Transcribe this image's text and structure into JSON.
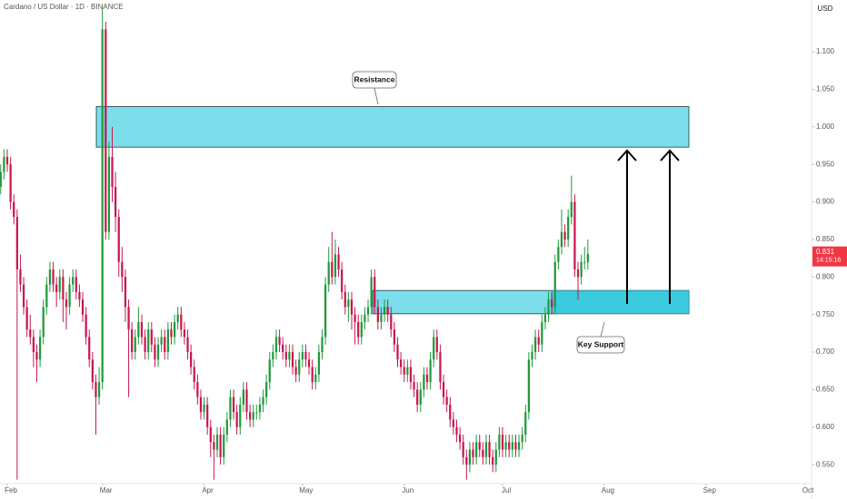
{
  "chart_data": {
    "type": "candlestick",
    "title": "Cardano / US Dollar · 1D · BINANCE",
    "currency": "USD",
    "countdown": "14:15:16",
    "up_color": "#1f9a3a",
    "down_color": "#c8174f",
    "zone_color": "#4fd3e3",
    "zones": [
      {
        "label": "Resistance",
        "low": 0.973,
        "high": 1.027
      },
      {
        "label": "Key Support",
        "low": 0.751,
        "high": 0.782
      }
    ],
    "xlim": [
      -0.22,
      247.2
    ],
    "xticks": [
      {
        "value": 2,
        "label": "Feb"
      },
      {
        "value": 31,
        "label": "Mar"
      },
      {
        "value": 62,
        "label": "Apr"
      },
      {
        "value": 92,
        "label": "May"
      },
      {
        "value": 123,
        "label": "Jun"
      },
      {
        "value": 153,
        "label": "Jul"
      },
      {
        "value": 184,
        "label": "Aug"
      },
      {
        "value": 215,
        "label": "Sep"
      },
      {
        "value": 245,
        "label": "Oct"
      }
    ],
    "ylim": [
      0.526,
      1.169
    ],
    "yticks": [
      {
        "value": 0.55,
        "label": "0.550"
      },
      {
        "value": 0.6,
        "label": "0.600"
      },
      {
        "value": 0.65,
        "label": "0.650"
      },
      {
        "value": 0.7,
        "label": "0.700"
      },
      {
        "value": 0.75,
        "label": "0.750"
      },
      {
        "value": 0.8,
        "label": "0.800"
      },
      {
        "value": 0.85,
        "label": "0.850"
      },
      {
        "value": 0.9,
        "label": "0.900"
      },
      {
        "value": 0.95,
        "label": "0.950"
      },
      {
        "value": 1.0,
        "label": "1.000"
      },
      {
        "value": 1.05,
        "label": "1.050"
      },
      {
        "value": 1.1,
        "label": "1.100"
      }
    ],
    "ohlc": [
      [
        0.92,
        0.95,
        0.91,
        0.94
      ],
      [
        0.94,
        0.97,
        0.93,
        0.96
      ],
      [
        0.96,
        0.97,
        0.94,
        0.95
      ],
      [
        0.95,
        0.96,
        0.89,
        0.9
      ],
      [
        0.9,
        0.91,
        0.87,
        0.88
      ],
      [
        0.88,
        0.89,
        0.53,
        0.81
      ],
      [
        0.81,
        0.83,
        0.78,
        0.79
      ],
      [
        0.79,
        0.8,
        0.75,
        0.76
      ],
      [
        0.76,
        0.77,
        0.72,
        0.73
      ],
      [
        0.73,
        0.75,
        0.71,
        0.72
      ],
      [
        0.72,
        0.73,
        0.68,
        0.7
      ],
      [
        0.7,
        0.71,
        0.66,
        0.69
      ],
      [
        0.69,
        0.73,
        0.68,
        0.72
      ],
      [
        0.72,
        0.77,
        0.71,
        0.76
      ],
      [
        0.76,
        0.8,
        0.75,
        0.79
      ],
      [
        0.79,
        0.82,
        0.78,
        0.81
      ],
      [
        0.81,
        0.82,
        0.78,
        0.79
      ],
      [
        0.79,
        0.8,
        0.76,
        0.78
      ],
      [
        0.78,
        0.81,
        0.77,
        0.8
      ],
      [
        0.8,
        0.81,
        0.74,
        0.77
      ],
      [
        0.77,
        0.78,
        0.73,
        0.76
      ],
      [
        0.76,
        0.8,
        0.75,
        0.79
      ],
      [
        0.79,
        0.81,
        0.78,
        0.8
      ],
      [
        0.8,
        0.81,
        0.77,
        0.78
      ],
      [
        0.78,
        0.79,
        0.76,
        0.77
      ],
      [
        0.77,
        0.78,
        0.74,
        0.75
      ],
      [
        0.75,
        0.76,
        0.71,
        0.72
      ],
      [
        0.72,
        0.73,
        0.68,
        0.69
      ],
      [
        0.69,
        0.7,
        0.65,
        0.66
      ],
      [
        0.66,
        0.67,
        0.59,
        0.64
      ],
      [
        0.64,
        0.68,
        0.63,
        0.66
      ],
      [
        0.66,
        1.16,
        0.65,
        1.13
      ],
      [
        1.13,
        1.14,
        0.85,
        0.86
      ],
      [
        0.86,
        0.98,
        0.85,
        0.96
      ],
      [
        0.96,
        1.0,
        0.9,
        0.92
      ],
      [
        0.92,
        0.94,
        0.86,
        0.88
      ],
      [
        0.88,
        0.89,
        0.8,
        0.82
      ],
      [
        0.82,
        0.84,
        0.78,
        0.8
      ],
      [
        0.8,
        0.81,
        0.74,
        0.76
      ],
      [
        0.76,
        0.77,
        0.64,
        0.73
      ],
      [
        0.73,
        0.74,
        0.69,
        0.7
      ],
      [
        0.7,
        0.73,
        0.69,
        0.72
      ],
      [
        0.72,
        0.76,
        0.71,
        0.74
      ],
      [
        0.74,
        0.75,
        0.71,
        0.72
      ],
      [
        0.72,
        0.73,
        0.69,
        0.7
      ],
      [
        0.7,
        0.74,
        0.69,
        0.73
      ],
      [
        0.73,
        0.74,
        0.7,
        0.71
      ],
      [
        0.71,
        0.72,
        0.68,
        0.69
      ],
      [
        0.69,
        0.72,
        0.68,
        0.71
      ],
      [
        0.71,
        0.73,
        0.7,
        0.72
      ],
      [
        0.72,
        0.73,
        0.69,
        0.7
      ],
      [
        0.7,
        0.74,
        0.69,
        0.73
      ],
      [
        0.73,
        0.74,
        0.71,
        0.72
      ],
      [
        0.72,
        0.75,
        0.71,
        0.74
      ],
      [
        0.74,
        0.76,
        0.73,
        0.75
      ],
      [
        0.75,
        0.76,
        0.72,
        0.73
      ],
      [
        0.73,
        0.74,
        0.71,
        0.72
      ],
      [
        0.72,
        0.73,
        0.69,
        0.7
      ],
      [
        0.7,
        0.71,
        0.67,
        0.68
      ],
      [
        0.68,
        0.69,
        0.65,
        0.66
      ],
      [
        0.66,
        0.67,
        0.63,
        0.64
      ],
      [
        0.64,
        0.65,
        0.61,
        0.62
      ],
      [
        0.62,
        0.64,
        0.61,
        0.63
      ],
      [
        0.63,
        0.64,
        0.59,
        0.6
      ],
      [
        0.6,
        0.61,
        0.56,
        0.58
      ],
      [
        0.58,
        0.59,
        0.53,
        0.57
      ],
      [
        0.57,
        0.6,
        0.56,
        0.59
      ],
      [
        0.59,
        0.6,
        0.55,
        0.56
      ],
      [
        0.56,
        0.6,
        0.55,
        0.59
      ],
      [
        0.59,
        0.62,
        0.58,
        0.61
      ],
      [
        0.61,
        0.65,
        0.6,
        0.64
      ],
      [
        0.64,
        0.65,
        0.61,
        0.62
      ],
      [
        0.62,
        0.63,
        0.59,
        0.6
      ],
      [
        0.6,
        0.64,
        0.59,
        0.63
      ],
      [
        0.63,
        0.66,
        0.62,
        0.65
      ],
      [
        0.65,
        0.66,
        0.61,
        0.62
      ],
      [
        0.62,
        0.63,
        0.6,
        0.61
      ],
      [
        0.61,
        0.63,
        0.6,
        0.62
      ],
      [
        0.62,
        0.63,
        0.61,
        0.62
      ],
      [
        0.62,
        0.64,
        0.61,
        0.63
      ],
      [
        0.63,
        0.65,
        0.62,
        0.64
      ],
      [
        0.64,
        0.67,
        0.63,
        0.66
      ],
      [
        0.66,
        0.7,
        0.65,
        0.69
      ],
      [
        0.69,
        0.71,
        0.68,
        0.7
      ],
      [
        0.7,
        0.73,
        0.69,
        0.72
      ],
      [
        0.72,
        0.73,
        0.7,
        0.71
      ],
      [
        0.71,
        0.72,
        0.69,
        0.7
      ],
      [
        0.7,
        0.71,
        0.68,
        0.69
      ],
      [
        0.69,
        0.71,
        0.68,
        0.7
      ],
      [
        0.7,
        0.71,
        0.67,
        0.68
      ],
      [
        0.68,
        0.69,
        0.66,
        0.67
      ],
      [
        0.67,
        0.7,
        0.66,
        0.69
      ],
      [
        0.69,
        0.71,
        0.68,
        0.7
      ],
      [
        0.7,
        0.71,
        0.68,
        0.69
      ],
      [
        0.69,
        0.7,
        0.67,
        0.68
      ],
      [
        0.68,
        0.69,
        0.65,
        0.66
      ],
      [
        0.66,
        0.68,
        0.65,
        0.67
      ],
      [
        0.67,
        0.71,
        0.66,
        0.7
      ],
      [
        0.7,
        0.73,
        0.69,
        0.72
      ],
      [
        0.72,
        0.8,
        0.71,
        0.79
      ],
      [
        0.79,
        0.84,
        0.78,
        0.82
      ],
      [
        0.82,
        0.86,
        0.79,
        0.8
      ],
      [
        0.8,
        0.85,
        0.79,
        0.83
      ],
      [
        0.83,
        0.84,
        0.8,
        0.81
      ],
      [
        0.81,
        0.82,
        0.77,
        0.78
      ],
      [
        0.78,
        0.79,
        0.75,
        0.76
      ],
      [
        0.76,
        0.78,
        0.74,
        0.77
      ],
      [
        0.77,
        0.78,
        0.73,
        0.75
      ],
      [
        0.75,
        0.76,
        0.71,
        0.74
      ],
      [
        0.74,
        0.75,
        0.71,
        0.72
      ],
      [
        0.72,
        0.75,
        0.71,
        0.74
      ],
      [
        0.74,
        0.76,
        0.73,
        0.75
      ],
      [
        0.75,
        0.77,
        0.74,
        0.76
      ],
      [
        0.76,
        0.81,
        0.75,
        0.8
      ],
      [
        0.8,
        0.81,
        0.75,
        0.76
      ],
      [
        0.76,
        0.77,
        0.73,
        0.74
      ],
      [
        0.74,
        0.76,
        0.73,
        0.75
      ],
      [
        0.75,
        0.77,
        0.74,
        0.76
      ],
      [
        0.76,
        0.77,
        0.74,
        0.75
      ],
      [
        0.75,
        0.76,
        0.72,
        0.73
      ],
      [
        0.73,
        0.74,
        0.7,
        0.71
      ],
      [
        0.71,
        0.72,
        0.68,
        0.69
      ],
      [
        0.69,
        0.7,
        0.67,
        0.68
      ],
      [
        0.68,
        0.69,
        0.66,
        0.67
      ],
      [
        0.67,
        0.69,
        0.66,
        0.68
      ],
      [
        0.68,
        0.69,
        0.65,
        0.66
      ],
      [
        0.66,
        0.67,
        0.64,
        0.65
      ],
      [
        0.65,
        0.66,
        0.62,
        0.63
      ],
      [
        0.63,
        0.66,
        0.62,
        0.65
      ],
      [
        0.65,
        0.68,
        0.64,
        0.67
      ],
      [
        0.67,
        0.68,
        0.65,
        0.66
      ],
      [
        0.66,
        0.7,
        0.65,
        0.69
      ],
      [
        0.69,
        0.73,
        0.68,
        0.72
      ],
      [
        0.72,
        0.73,
        0.69,
        0.7
      ],
      [
        0.7,
        0.71,
        0.65,
        0.66
      ],
      [
        0.66,
        0.67,
        0.63,
        0.64
      ],
      [
        0.64,
        0.65,
        0.62,
        0.63
      ],
      [
        0.63,
        0.64,
        0.6,
        0.61
      ],
      [
        0.61,
        0.62,
        0.59,
        0.6
      ],
      [
        0.6,
        0.61,
        0.58,
        0.59
      ],
      [
        0.59,
        0.6,
        0.57,
        0.58
      ],
      [
        0.58,
        0.59,
        0.55,
        0.56
      ],
      [
        0.56,
        0.57,
        0.53,
        0.55
      ],
      [
        0.55,
        0.58,
        0.54,
        0.57
      ],
      [
        0.57,
        0.58,
        0.55,
        0.56
      ],
      [
        0.56,
        0.59,
        0.55,
        0.58
      ],
      [
        0.58,
        0.59,
        0.56,
        0.57
      ],
      [
        0.57,
        0.58,
        0.55,
        0.56
      ],
      [
        0.56,
        0.59,
        0.55,
        0.58
      ],
      [
        0.58,
        0.59,
        0.55,
        0.56
      ],
      [
        0.56,
        0.57,
        0.54,
        0.55
      ],
      [
        0.55,
        0.58,
        0.54,
        0.57
      ],
      [
        0.57,
        0.6,
        0.56,
        0.59
      ],
      [
        0.59,
        0.6,
        0.56,
        0.57
      ],
      [
        0.57,
        0.59,
        0.56,
        0.58
      ],
      [
        0.58,
        0.59,
        0.56,
        0.57
      ],
      [
        0.57,
        0.59,
        0.56,
        0.58
      ],
      [
        0.58,
        0.59,
        0.56,
        0.57
      ],
      [
        0.57,
        0.59,
        0.56,
        0.58
      ],
      [
        0.58,
        0.6,
        0.57,
        0.59
      ],
      [
        0.59,
        0.63,
        0.58,
        0.62
      ],
      [
        0.62,
        0.7,
        0.61,
        0.69
      ],
      [
        0.69,
        0.71,
        0.68,
        0.7
      ],
      [
        0.7,
        0.73,
        0.69,
        0.72
      ],
      [
        0.72,
        0.73,
        0.7,
        0.71
      ],
      [
        0.71,
        0.75,
        0.7,
        0.74
      ],
      [
        0.74,
        0.76,
        0.73,
        0.75
      ],
      [
        0.75,
        0.78,
        0.74,
        0.77
      ],
      [
        0.77,
        0.78,
        0.75,
        0.76
      ],
      [
        0.76,
        0.83,
        0.75,
        0.82
      ],
      [
        0.82,
        0.85,
        0.81,
        0.84
      ],
      [
        0.84,
        0.89,
        0.83,
        0.86
      ],
      [
        0.86,
        0.87,
        0.84,
        0.85
      ],
      [
        0.85,
        0.89,
        0.84,
        0.88
      ],
      [
        0.88,
        0.935,
        0.87,
        0.9
      ],
      [
        0.9,
        0.91,
        0.8,
        0.81
      ],
      [
        0.81,
        0.82,
        0.77,
        0.8
      ],
      [
        0.8,
        0.83,
        0.79,
        0.82
      ],
      [
        0.82,
        0.84,
        0.81,
        0.82
      ],
      [
        0.82,
        0.85,
        0.81,
        0.831
      ]
    ]
  }
}
